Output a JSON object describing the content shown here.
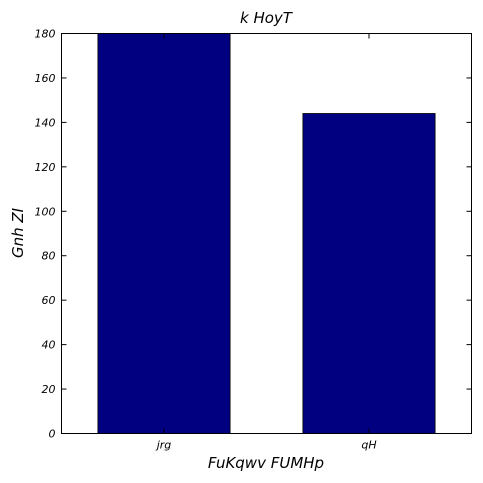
{
  "chart_data": {
    "type": "bar",
    "title": "k  HoyT",
    "xlabel": "FuKqwv FUMHp",
    "ylabel": "Gnh ZI",
    "categories": [
      "jrg",
      "qH"
    ],
    "series": [
      {
        "values": [
          180,
          144
        ]
      }
    ],
    "ylim": [
      0,
      180
    ],
    "yticks": [
      0,
      20,
      40,
      60,
      80,
      100,
      120,
      140,
      160,
      180
    ],
    "bar_color": "#000080",
    "grid": false,
    "legend": "none"
  }
}
